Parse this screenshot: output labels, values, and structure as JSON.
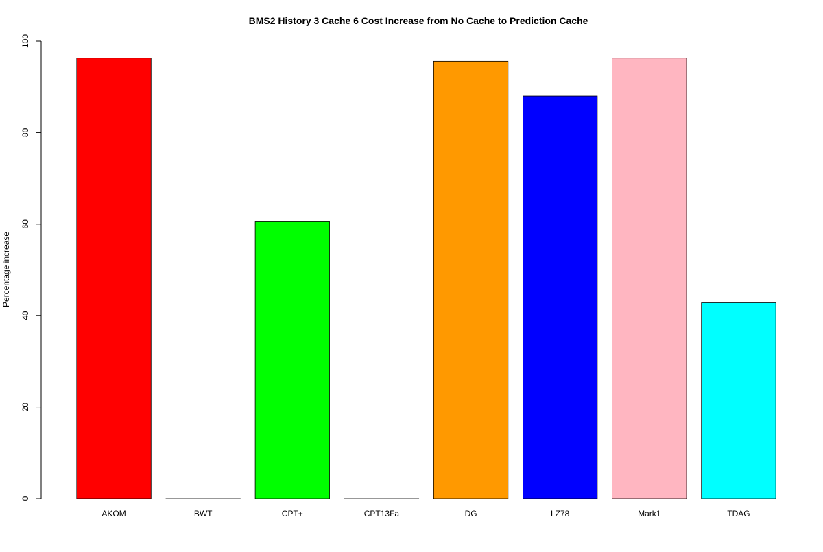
{
  "chart_data": {
    "type": "bar",
    "title": "BMS2  History  3  Cache  6  Cost Increase from No Cache to Prediction Cache",
    "xlabel": "",
    "ylabel": "Percentage increase",
    "ylim": [
      0,
      100
    ],
    "yticks": [
      0,
      20,
      40,
      60,
      80,
      100
    ],
    "grid": false,
    "legend": "none",
    "categories": [
      "AKOM",
      "BWT",
      "CPT+",
      "CPT13Fa",
      "DG",
      "LZ78",
      "Mark1",
      "TDAG"
    ],
    "values": [
      96.3,
      0,
      60.5,
      0,
      95.6,
      88.0,
      96.3,
      42.8
    ],
    "colors": [
      "#ff0000",
      "#000000",
      "#00ff00",
      "#000000",
      "#ff9900",
      "#0000ff",
      "#ffb6c1",
      "#00ffff"
    ]
  }
}
